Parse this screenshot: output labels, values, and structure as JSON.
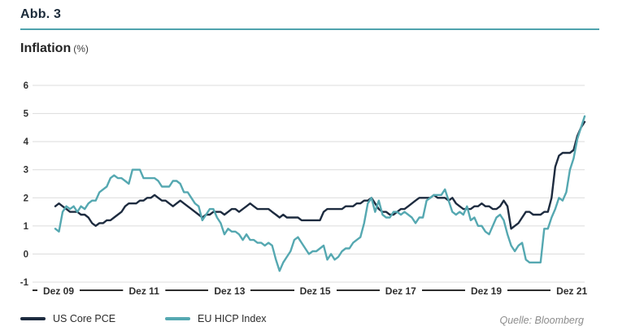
{
  "figure": {
    "label": "Abb. 3",
    "title": "Inflation",
    "unit": "(%)",
    "source": "Quelle: Bloomberg"
  },
  "colors": {
    "accent_teal": "#4fa3ad",
    "us_line": "#1d2b3f",
    "eu_line": "#55a8b1",
    "grid": "#dcdcdc",
    "axis_text": "#333333"
  },
  "chart_data": {
    "type": "line",
    "title": "Inflation (%)",
    "frequency": "monthly",
    "x_start": "Dez 09",
    "x_end": "Dez 21",
    "x_tick_labels": [
      "Dez 09",
      "Dez 11",
      "Dez 13",
      "Dez 15",
      "Dez 17",
      "Dez 19",
      "Dez 21"
    ],
    "ylim": [
      -1,
      6
    ],
    "y_ticks": [
      6,
      5,
      4,
      3,
      2,
      1,
      0,
      -1
    ],
    "grid": "horizontal",
    "legend_position": "bottom-left",
    "series": [
      {
        "name": "US Core PCE",
        "color": "#1d2b3f",
        "values": [
          1.7,
          1.8,
          1.7,
          1.6,
          1.5,
          1.5,
          1.5,
          1.4,
          1.4,
          1.3,
          1.1,
          1.0,
          1.1,
          1.1,
          1.2,
          1.2,
          1.3,
          1.4,
          1.5,
          1.7,
          1.8,
          1.8,
          1.8,
          1.9,
          1.9,
          2.0,
          2.0,
          2.1,
          2.0,
          1.9,
          1.9,
          1.8,
          1.7,
          1.8,
          1.9,
          1.8,
          1.7,
          1.6,
          1.5,
          1.4,
          1.3,
          1.4,
          1.4,
          1.5,
          1.5,
          1.5,
          1.4,
          1.5,
          1.6,
          1.6,
          1.5,
          1.6,
          1.7,
          1.8,
          1.7,
          1.6,
          1.6,
          1.6,
          1.6,
          1.5,
          1.4,
          1.3,
          1.4,
          1.3,
          1.3,
          1.3,
          1.3,
          1.2,
          1.2,
          1.2,
          1.2,
          1.2,
          1.2,
          1.5,
          1.6,
          1.6,
          1.6,
          1.6,
          1.6,
          1.7,
          1.7,
          1.7,
          1.8,
          1.8,
          1.9,
          1.9,
          2.0,
          1.8,
          1.6,
          1.5,
          1.5,
          1.4,
          1.4,
          1.5,
          1.6,
          1.6,
          1.7,
          1.8,
          1.9,
          2.0,
          2.0,
          2.0,
          2.0,
          2.1,
          2.0,
          2.0,
          2.0,
          1.9,
          2.0,
          1.8,
          1.7,
          1.6,
          1.6,
          1.6,
          1.7,
          1.7,
          1.8,
          1.7,
          1.7,
          1.6,
          1.6,
          1.7,
          1.9,
          1.7,
          0.9,
          1.0,
          1.1,
          1.3,
          1.5,
          1.5,
          1.4,
          1.4,
          1.4,
          1.5,
          1.5,
          2.0,
          3.1,
          3.5,
          3.6,
          3.6,
          3.6,
          3.7,
          4.2,
          4.5,
          4.7
        ]
      },
      {
        "name": "EU HICP Index",
        "color": "#55a8b1",
        "values": [
          0.9,
          0.8,
          1.5,
          1.7,
          1.6,
          1.7,
          1.5,
          1.7,
          1.6,
          1.8,
          1.9,
          1.9,
          2.2,
          2.3,
          2.4,
          2.7,
          2.8,
          2.7,
          2.7,
          2.6,
          2.5,
          3.0,
          3.0,
          3.0,
          2.7,
          2.7,
          2.7,
          2.7,
          2.6,
          2.4,
          2.4,
          2.4,
          2.6,
          2.6,
          2.5,
          2.2,
          2.2,
          2.0,
          1.8,
          1.7,
          1.2,
          1.4,
          1.6,
          1.6,
          1.3,
          1.1,
          0.7,
          0.9,
          0.8,
          0.8,
          0.7,
          0.5,
          0.7,
          0.5,
          0.5,
          0.4,
          0.4,
          0.3,
          0.4,
          0.3,
          -0.2,
          -0.6,
          -0.3,
          -0.1,
          0.1,
          0.5,
          0.6,
          0.4,
          0.2,
          0.0,
          0.1,
          0.1,
          0.2,
          0.3,
          -0.2,
          0.0,
          -0.2,
          -0.1,
          0.1,
          0.2,
          0.2,
          0.4,
          0.5,
          0.6,
          1.1,
          1.8,
          2.0,
          1.5,
          1.9,
          1.4,
          1.3,
          1.3,
          1.5,
          1.5,
          1.4,
          1.5,
          1.4,
          1.3,
          1.1,
          1.3,
          1.3,
          1.9,
          2.0,
          2.1,
          2.1,
          2.1,
          2.3,
          1.9,
          1.5,
          1.4,
          1.5,
          1.4,
          1.7,
          1.2,
          1.3,
          1.0,
          1.0,
          0.8,
          0.7,
          1.0,
          1.3,
          1.4,
          1.2,
          0.7,
          0.3,
          0.1,
          0.3,
          0.4,
          -0.2,
          -0.3,
          -0.3,
          -0.3,
          -0.3,
          0.9,
          0.9,
          1.3,
          1.6,
          2.0,
          1.9,
          2.2,
          3.0,
          3.4,
          4.1,
          4.5,
          4.9
        ]
      }
    ],
    "source": "Quelle: Bloomberg"
  }
}
